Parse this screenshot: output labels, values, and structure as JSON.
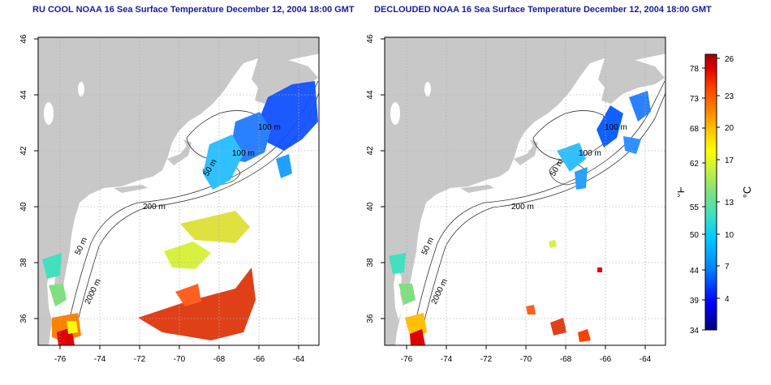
{
  "left_panel": {
    "title": "RU COOL NOAA 16 Sea Surface Temperature December 12, 2004 18:00 GMT",
    "contour_labels": [
      "100 m",
      "100 m",
      "50 m",
      "200 m",
      "50 m",
      "2000 m"
    ]
  },
  "right_panel": {
    "title": "DECLOUDED NOAA 16 Sea Surface Temperature December 12, 2004 18:00 GMT",
    "contour_labels": [
      "100 m",
      "100 m",
      "50 m",
      "200 m",
      "50 m",
      "2000 m"
    ]
  },
  "axes": {
    "x_ticks": [
      "-76",
      "-74",
      "-72",
      "-70",
      "-68",
      "-66",
      "-64"
    ],
    "y_ticks": [
      "46",
      "44",
      "42",
      "40",
      "38",
      "36"
    ]
  },
  "colorbar": {
    "fahrenheit_ticks": [
      "78",
      "73",
      "68",
      "62",
      "55",
      "50",
      "44",
      "39",
      "34"
    ],
    "celsius_ticks": [
      "26",
      "23",
      "20",
      "17",
      "13",
      "10",
      "7",
      "4"
    ],
    "fahrenheit_unit": "°F",
    "celsius_unit": "°C",
    "colors": [
      "#000080",
      "#0000ff",
      "#0080ff",
      "#00c8ff",
      "#40e0c0",
      "#80e080",
      "#c8f040",
      "#ffff00",
      "#ffc000",
      "#ff8000",
      "#ff4000",
      "#e00000",
      "#a00000"
    ]
  },
  "map_colors": {
    "land": "#c8c8c8",
    "ocean": "#ffffff",
    "grid": "#b0b0b0"
  }
}
